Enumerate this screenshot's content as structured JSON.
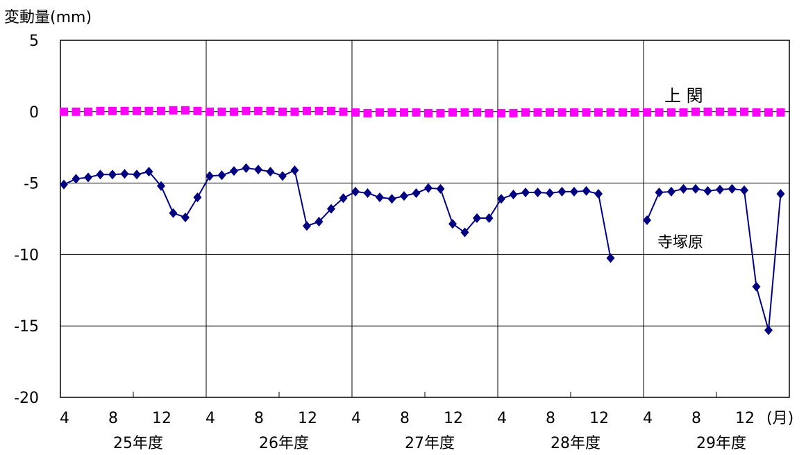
{
  "chart_data": {
    "type": "line",
    "ylabel": "変動量(mm)",
    "ylim": [
      -20,
      5
    ],
    "y_ticks": [
      "5",
      "0",
      "-5",
      "-10",
      "-15",
      "-20"
    ],
    "y_tick_values": [
      5,
      0,
      -5,
      -10,
      -15,
      -20
    ],
    "grid": true,
    "month_ticks": [
      "4",
      "8",
      "12"
    ],
    "month_unit": "(月)",
    "fiscal_years": [
      "25年度",
      "26年度",
      "27年度",
      "28年度",
      "29年度"
    ],
    "series": [
      {
        "name": "上 関",
        "color": "#ff00ff",
        "marker": "square",
        "values": [
          0.0,
          0.0,
          0.0,
          0.05,
          0.05,
          0.05,
          0.05,
          0.05,
          0.05,
          0.1,
          0.1,
          0.05,
          0.0,
          0.0,
          0.0,
          0.05,
          0.05,
          0.05,
          0.0,
          0.0,
          0.05,
          0.05,
          0.05,
          0.0,
          -0.05,
          -0.1,
          -0.05,
          -0.05,
          -0.05,
          -0.05,
          -0.1,
          -0.1,
          -0.05,
          -0.05,
          -0.05,
          -0.1,
          -0.1,
          -0.1,
          -0.05,
          -0.05,
          -0.05,
          -0.05,
          -0.05,
          -0.05,
          -0.05,
          -0.05,
          -0.05,
          -0.05,
          -0.05,
          -0.05,
          -0.05,
          -0.05,
          0.0,
          0.0,
          0.0,
          0.0,
          0.0,
          -0.05,
          -0.05,
          -0.05
        ]
      },
      {
        "name": "寺塚原",
        "color": "#000080",
        "marker": "diamond",
        "values": [
          -5.1,
          -4.7,
          -4.6,
          -4.4,
          -4.4,
          -4.35,
          -4.4,
          -4.2,
          -5.2,
          -7.1,
          -7.4,
          -6.0,
          -4.5,
          -4.45,
          -4.15,
          -3.95,
          -4.05,
          -4.2,
          -4.5,
          -4.1,
          -8.0,
          -7.7,
          -6.8,
          -6.05,
          -5.6,
          -5.7,
          -6.0,
          -6.1,
          -5.9,
          -5.7,
          -5.35,
          -5.4,
          -7.85,
          -8.45,
          -7.45,
          -7.45,
          -6.1,
          -5.8,
          -5.65,
          -5.65,
          -5.7,
          -5.6,
          -5.6,
          -5.55,
          -5.75,
          -10.25,
          null,
          null,
          -7.6,
          -5.65,
          -5.6,
          -5.4,
          -5.4,
          -5.55,
          -5.45,
          -5.4,
          -5.5,
          -12.25,
          -15.3,
          -5.75
        ]
      }
    ]
  }
}
